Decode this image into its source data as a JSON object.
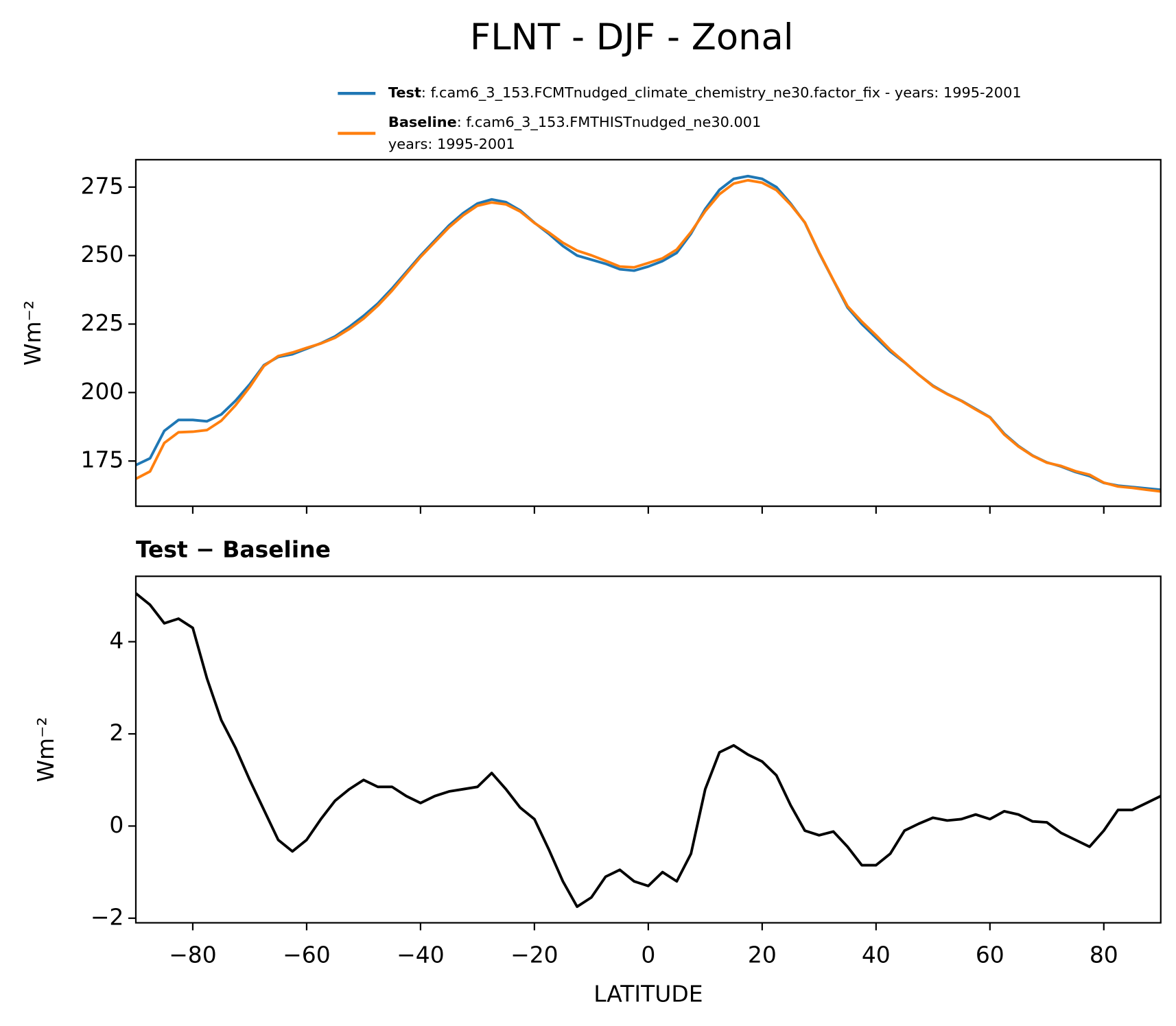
{
  "title": "FLNT - DJF - Zonal",
  "chart_data": [
    {
      "type": "line",
      "ylabel": "Wm⁻²",
      "x": [
        -90,
        -87.5,
        -85,
        -82.5,
        -80,
        -77.5,
        -75,
        -72.5,
        -70,
        -67.5,
        -65,
        -62.5,
        -60,
        -57.5,
        -55,
        -52.5,
        -50,
        -47.5,
        -45,
        -42.5,
        -40,
        -37.5,
        -35,
        -32.5,
        -30,
        -27.5,
        -25,
        -22.5,
        -20,
        -17.5,
        -15,
        -12.5,
        -10,
        -7.5,
        -5,
        -2.5,
        0,
        2.5,
        5,
        7.5,
        10,
        12.5,
        15,
        17.5,
        20,
        22.5,
        25,
        27.5,
        30,
        32.5,
        35,
        37.5,
        40,
        42.5,
        45,
        47.5,
        50,
        52.5,
        55,
        57.5,
        60,
        62.5,
        65,
        67.5,
        70,
        72.5,
        75,
        77.5,
        80,
        82.5,
        85,
        87.5,
        90
      ],
      "series": [
        {
          "name": "Test",
          "detail": [
            ": f.cam6_3_153.FCMTnudged_climate_chemistry_ne30.factor_fix - years: 1995-2001"
          ],
          "color": "#1f77b4",
          "values": [
            173.5,
            176,
            186,
            190,
            190,
            189.5,
            192,
            197,
            203,
            210,
            213,
            214,
            216,
            218,
            220.5,
            224,
            228,
            232.5,
            238,
            244,
            250,
            255.5,
            261,
            265.5,
            269,
            270.5,
            269.5,
            266.5,
            262,
            258,
            253.5,
            250,
            248.5,
            247,
            245,
            244.5,
            246,
            248,
            251,
            258,
            267,
            274,
            278,
            279,
            278,
            275,
            269,
            262,
            251,
            241,
            231,
            225,
            220,
            215,
            211,
            206.5,
            202.5,
            199.5,
            197,
            194,
            191,
            185,
            180.5,
            177,
            174.5,
            173,
            171,
            169.5,
            167,
            166,
            165.5,
            165,
            164.5
          ]
        },
        {
          "name": "Baseline",
          "detail": [
            ": f.cam6_3_153.FMTHISTnudged_ne30.001",
            "years: 1995-2001"
          ],
          "color": "#ff7f0e",
          "values": [
            168.5,
            171.2,
            181.6,
            185.5,
            185.7,
            186.3,
            189.7,
            195.3,
            202,
            209.7,
            213.3,
            214.6,
            216.3,
            217.9,
            220,
            223.2,
            227,
            231.7,
            237.2,
            243.4,
            249.5,
            254.9,
            260.3,
            264.7,
            268.2,
            269.4,
            268.7,
            266.1,
            261.9,
            258.5,
            254.7,
            251.8,
            250.1,
            248.1,
            246,
            245.7,
            247.3,
            249,
            252.2,
            258.6,
            266.2,
            272.4,
            276.3,
            277.5,
            276.6,
            273.9,
            268.6,
            262.1,
            251.2,
            241.1,
            231.5,
            225.9,
            220.9,
            215.6,
            211.1,
            206.5,
            202.3,
            199.4,
            196.9,
            193.8,
            190.9,
            184.7,
            180.3,
            176.9,
            174.4,
            173.2,
            171.3,
            170,
            167.1,
            165.7,
            165.2,
            164.5,
            163.9
          ]
        }
      ],
      "xlim": [
        -90,
        90
      ],
      "xticks": [
        -80,
        -60,
        -40,
        -20,
        0,
        20,
        40,
        60,
        80
      ],
      "x_tick_labels": false,
      "ylim": [
        158.5,
        285
      ],
      "yticks": [
        175,
        200,
        225,
        250,
        275
      ],
      "legend": "upper right"
    },
    {
      "type": "line",
      "title": "Test − Baseline",
      "xlabel": "LATITUDE",
      "ylabel": "Wm⁻²",
      "x": [
        -90,
        -87.5,
        -85,
        -82.5,
        -80,
        -77.5,
        -75,
        -72.5,
        -70,
        -67.5,
        -65,
        -62.5,
        -60,
        -57.5,
        -55,
        -52.5,
        -50,
        -47.5,
        -45,
        -42.5,
        -40,
        -37.5,
        -35,
        -32.5,
        -30,
        -27.5,
        -25,
        -22.5,
        -20,
        -17.5,
        -15,
        -12.5,
        -10,
        -7.5,
        -5,
        -2.5,
        0,
        2.5,
        5,
        7.5,
        10,
        12.5,
        15,
        17.5,
        20,
        22.5,
        25,
        27.5,
        30,
        32.5,
        35,
        37.5,
        40,
        42.5,
        45,
        47.5,
        50,
        52.5,
        55,
        57.5,
        60,
        62.5,
        65,
        67.5,
        70,
        72.5,
        75,
        77.5,
        80,
        82.5,
        85,
        87.5,
        90
      ],
      "series": [
        {
          "color": "#000000",
          "values": [
            5.05,
            4.8,
            4.4,
            4.5,
            4.3,
            3.2,
            2.3,
            1.7,
            1.0,
            0.35,
            -0.3,
            -0.55,
            -0.3,
            0.15,
            0.55,
            0.8,
            1.0,
            0.85,
            0.85,
            0.65,
            0.5,
            0.65,
            0.75,
            0.8,
            0.85,
            1.15,
            0.8,
            0.4,
            0.15,
            -0.5,
            -1.2,
            -1.75,
            -1.55,
            -1.1,
            -0.95,
            -1.2,
            -1.3,
            -1.0,
            -1.2,
            -0.6,
            0.8,
            1.6,
            1.75,
            1.55,
            1.4,
            1.1,
            0.45,
            -0.1,
            -0.2,
            -0.12,
            -0.45,
            -0.85,
            -0.85,
            -0.6,
            -0.1,
            0.05,
            0.18,
            0.12,
            0.15,
            0.25,
            0.15,
            0.32,
            0.25,
            0.1,
            0.08,
            -0.15,
            -0.3,
            -0.45,
            -0.1,
            0.35,
            0.35,
            0.5,
            0.65
          ]
        }
      ],
      "xlim": [
        -90,
        90
      ],
      "xticks": [
        {
          "value": -80,
          "label": "−80"
        },
        {
          "value": -60,
          "label": "−60"
        },
        {
          "value": -40,
          "label": "−40"
        },
        {
          "value": -20,
          "label": "−20"
        },
        0,
        20,
        40,
        60,
        80
      ],
      "x_tick_labels": true,
      "ylim": [
        -2.1,
        5.42
      ],
      "yticks": [
        {
          "value": -2,
          "label": "−2"
        },
        0,
        2,
        4
      ]
    }
  ]
}
